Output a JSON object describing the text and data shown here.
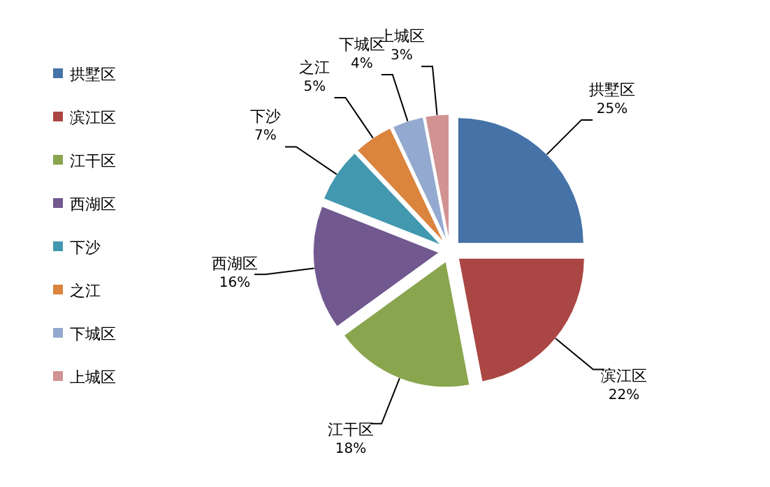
{
  "chart_data": {
    "type": "pie",
    "categories": [
      "拱墅区",
      "滨江区",
      "江干区",
      "西湖区",
      "下沙",
      "之江",
      "下城区",
      "上城区"
    ],
    "values": [
      25,
      22,
      18,
      16,
      7,
      5,
      4,
      3
    ],
    "colors": [
      "#4572a7",
      "#aa4643",
      "#89a54e",
      "#71588f",
      "#4198af",
      "#db843d",
      "#93a9cf",
      "#d19392"
    ],
    "value_labels": [
      "25%",
      "22%",
      "18%",
      "16%",
      "7%",
      "5%",
      "4%",
      "3%"
    ],
    "legend": "left"
  }
}
